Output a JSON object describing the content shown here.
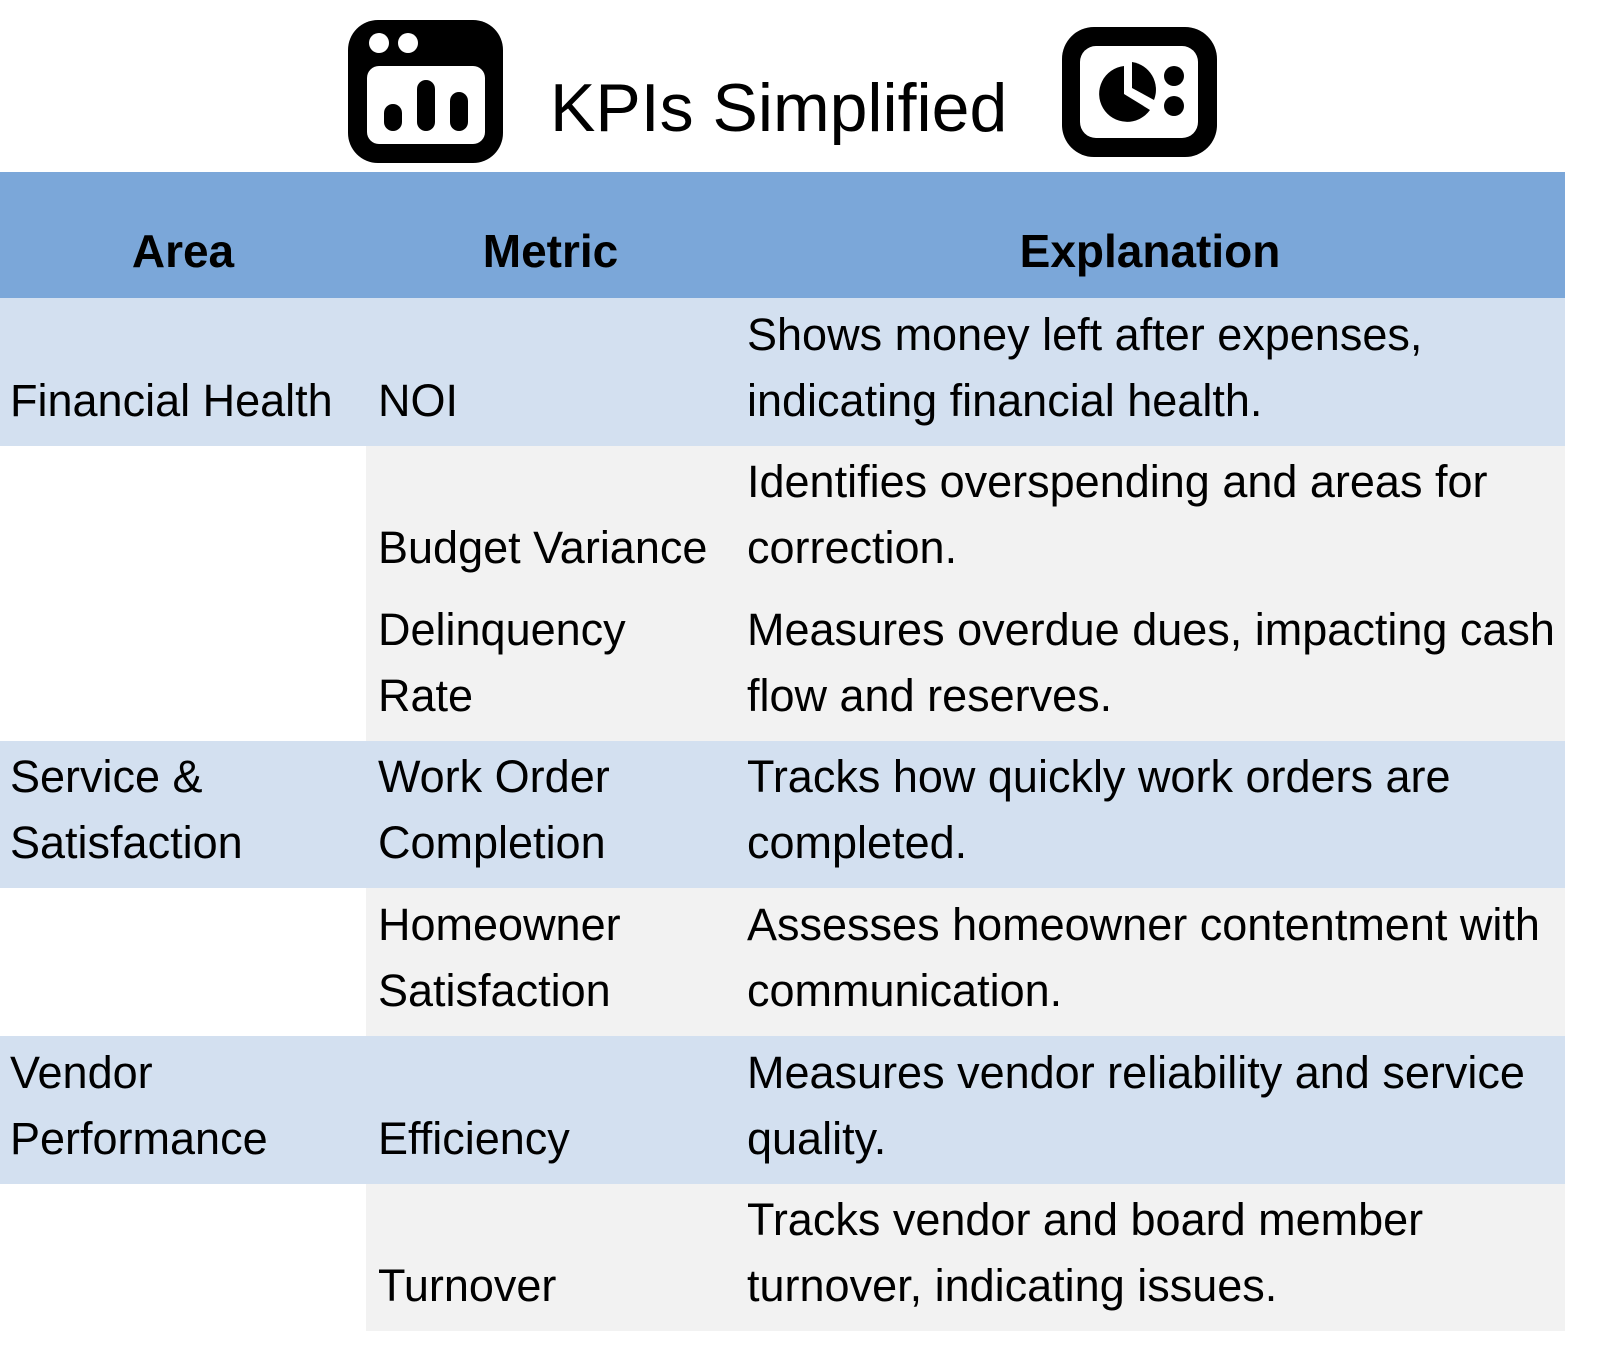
{
  "title": "KPIs Simplified",
  "table": {
    "headers": [
      "Area",
      "Metric",
      "Explanation"
    ],
    "rows": [
      {
        "area": "Financial Health",
        "metric": "NOI",
        "explanation": "Shows money left after expenses, indicating financial health."
      },
      {
        "metric": "Budget Variance",
        "explanation": "Identifies overspending and areas for correction."
      },
      {
        "metric": "Delinquency Rate",
        "explanation": "Measures overdue dues, impacting cash flow and reserves."
      },
      {
        "area": "Service & Satisfaction",
        "metric": "Work Order Completion",
        "explanation": "Tracks how quickly work orders are completed."
      },
      {
        "metric": "Homeowner Satisfaction",
        "explanation": "Assesses homeowner contentment with communication."
      },
      {
        "area": "Vendor Performance",
        "metric": "Efficiency",
        "explanation": "Measures vendor reliability and service quality."
      },
      {
        "metric": "Turnover",
        "explanation": "Tracks vendor and board member turnover, indicating issues."
      }
    ]
  }
}
